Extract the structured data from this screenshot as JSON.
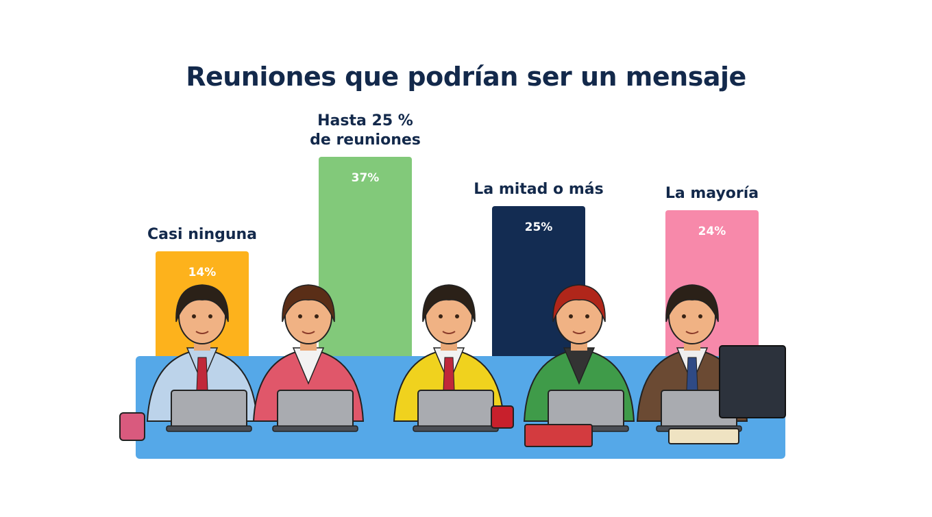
{
  "chart_data": {
    "type": "bar",
    "title": "Reuniones que podrían ser un mensaje",
    "categories": [
      [
        "Casi ninguna"
      ],
      [
        "Hasta 25 %",
        "de reuniones"
      ],
      [
        "La mitad o más"
      ],
      [
        "La mayoría"
      ]
    ],
    "values": [
      14,
      37,
      25,
      24
    ],
    "value_labels": [
      "14%",
      "37%",
      "25%",
      "24%"
    ],
    "colors": [
      "#fdb21c",
      "#82c97a",
      "#132c52",
      "#f789aa"
    ],
    "xlabel": "",
    "ylabel": "",
    "grid": false,
    "legend": "none",
    "table_color": "#55a8e8"
  }
}
